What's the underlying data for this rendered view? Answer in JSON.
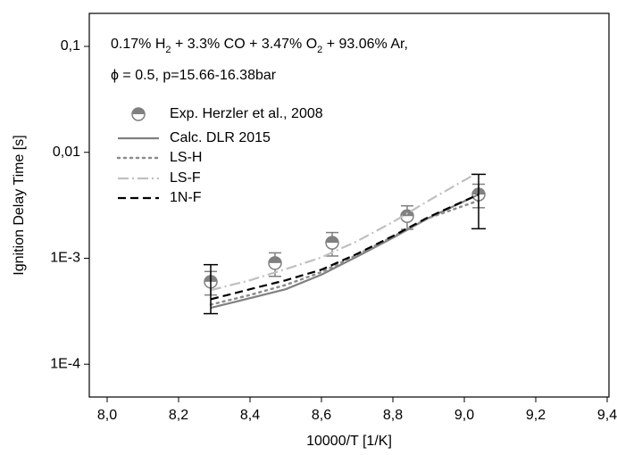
{
  "chart_data": {
    "type": "line",
    "annotation_lines": [
      [
        {
          "text": "0.17% H"
        },
        {
          "sub": "2"
        },
        {
          "text": " + 3.3% CO + 3.47% O"
        },
        {
          "sub": "2"
        },
        {
          "text": " + 93.06% Ar,"
        }
      ],
      [
        {
          "text": "ϕ = 0.5, p=15.66-16.38bar"
        }
      ]
    ],
    "xlabel": "10000/T [1/K]",
    "ylabel": "Ignition Delay Time [s]",
    "xlim": [
      7.95,
      9.405
    ],
    "ylim": [
      4.9e-05,
      0.205
    ],
    "yscale": "log",
    "xticks": [
      {
        "value": 8.0,
        "label": "8,0"
      },
      {
        "value": 8.2,
        "label": "8,2"
      },
      {
        "value": 8.4,
        "label": "8,4"
      },
      {
        "value": 8.6,
        "label": "8,6"
      },
      {
        "value": 8.8,
        "label": "8,8"
      },
      {
        "value": 9.0,
        "label": "9,0"
      },
      {
        "value": 9.2,
        "label": "9,2"
      },
      {
        "value": 9.4,
        "label": "9,4"
      }
    ],
    "yticks": [
      {
        "value": 0.0001,
        "label": "1E-4"
      },
      {
        "value": 0.001,
        "label": "1E-3"
      },
      {
        "value": 0.01,
        "label": "0,01"
      },
      {
        "value": 0.1,
        "label": "0,1"
      }
    ],
    "series": [
      {
        "name": "Exp. Herzler et al., 2008",
        "color": "#808080",
        "style": "marker",
        "x": [
          8.29,
          8.47,
          8.63,
          8.84,
          9.04
        ],
        "values": [
          0.0006,
          0.0009,
          0.0014,
          0.0025,
          0.004
        ],
        "errors": [
          0.00015,
          0.000225,
          0.00035,
          0.000625,
          0.001
        ]
      },
      {
        "name": "Calc. DLR 2015",
        "color": "#808080",
        "style": "solid",
        "x": [
          8.29,
          8.4,
          8.5,
          8.6,
          8.7,
          8.8,
          8.9,
          9.04
        ],
        "values": [
          0.00034,
          0.00042,
          0.00051,
          0.0007,
          0.00104,
          0.00156,
          0.0024,
          0.004
        ]
      },
      {
        "name": "LS-H",
        "color": "#8c8c8c",
        "style": "dotted",
        "x": [
          8.29,
          8.4,
          8.5,
          8.6,
          8.7,
          8.8,
          8.9,
          9.04
        ],
        "values": [
          0.000365,
          0.00045,
          0.00056,
          0.00074,
          0.00108,
          0.0016,
          0.0024,
          0.0035
        ]
      },
      {
        "name": "LS-F",
        "color": "#c0c0c0",
        "style": "dashdot",
        "x": [
          8.29,
          8.4,
          8.5,
          8.6,
          8.7,
          8.8,
          8.9,
          9.04
        ],
        "values": [
          0.0005,
          0.00062,
          0.00079,
          0.00102,
          0.00145,
          0.0022,
          0.0035,
          0.0065
        ]
      },
      {
        "name": "1N-F",
        "color": "#000000",
        "style": "dashed",
        "x": [
          8.29,
          8.4,
          8.5,
          8.6,
          8.7,
          8.8,
          8.9,
          9.04
        ],
        "values": [
          0.00041,
          0.00051,
          0.00062,
          0.00078,
          0.0011,
          0.00162,
          0.00245,
          0.004
        ]
      }
    ],
    "uncertainty": {
      "color": "#000000",
      "x": [
        8.29,
        9.04
      ],
      "upper": [
        0.00087,
        0.0062
      ],
      "lower": [
        0.0003,
        0.0019
      ]
    }
  }
}
